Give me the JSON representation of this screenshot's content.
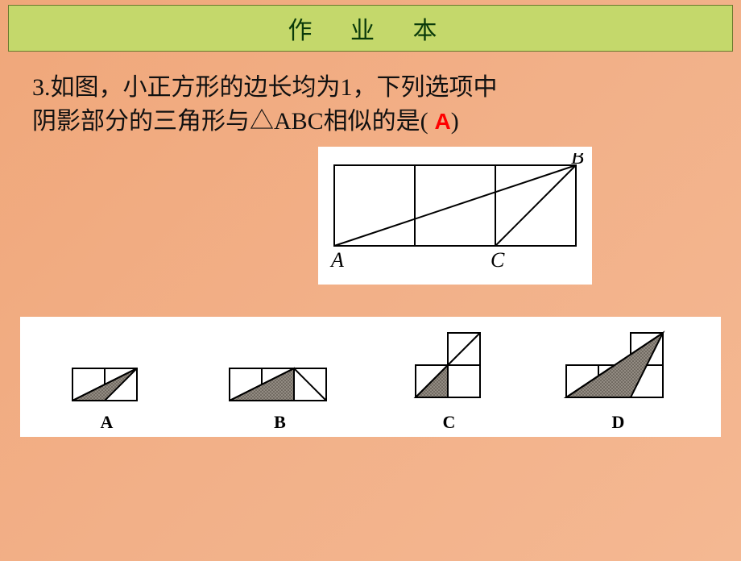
{
  "header": {
    "title": "作 业 本"
  },
  "question": {
    "line1": "3.如图，小正方形的边长均为1，下列选项中",
    "line2_pre": "阴影部分的三角形与△ABC相似的是(",
    "answer": " A",
    "line2_post": ")"
  },
  "main_figure": {
    "labels": {
      "A": "A",
      "B": "B",
      "C": "C"
    },
    "cell": 100,
    "stroke": "#000000",
    "label_font": "italic 26px 'Times New Roman', serif"
  },
  "options": {
    "cell": 40,
    "stroke": "#000000",
    "fill": "#777777",
    "labels": [
      "A",
      "B",
      "C",
      "D"
    ]
  },
  "colors": {
    "page_bg_start": "#f0a77a",
    "page_bg_end": "#f4b892",
    "header_bg": "#c4d86b",
    "header_border": "#6a7a2e",
    "header_text": "#0a3a0a",
    "text": "#111111",
    "answer": "#ff0000",
    "figure_bg": "#ffffff"
  },
  "typography": {
    "header_fontsize": 30,
    "question_fontsize": 30,
    "answer_fontsize": 28,
    "option_label_fontsize": 22
  }
}
